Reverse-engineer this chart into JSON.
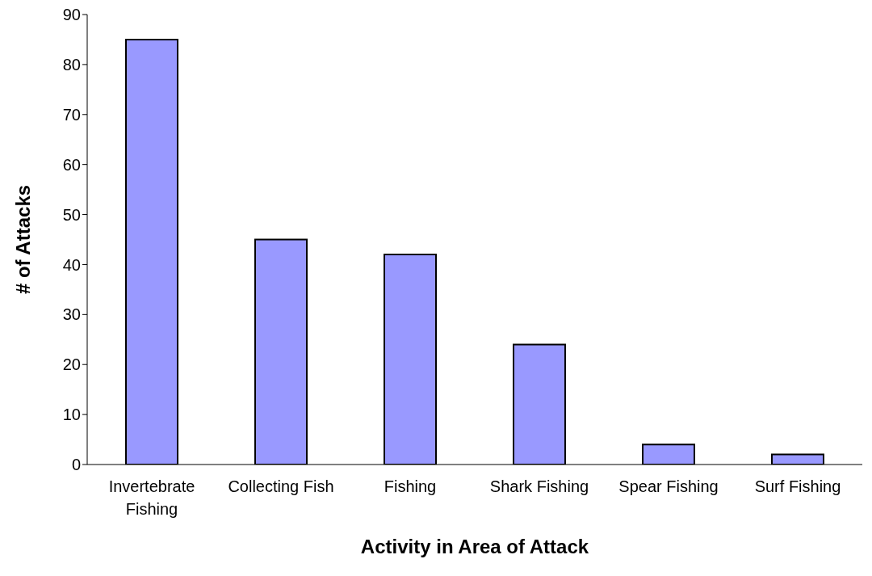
{
  "chart_data": {
    "type": "bar",
    "xlabel": "Activity in Area of Attack",
    "ylabel": "# of Attacks",
    "categories": [
      "Invertebrate Fishing",
      "Collecting Fish",
      "Fishing",
      "Shark Fishing",
      "Spear Fishing",
      "Surf Fishing"
    ],
    "values": [
      85,
      45,
      42,
      24,
      4,
      2
    ],
    "color": "#9999ff",
    "ylim": [
      0,
      90
    ],
    "yticks": [
      0,
      10,
      20,
      30,
      40,
      50,
      60,
      70,
      80,
      90
    ],
    "grid": false,
    "legend": false
  }
}
